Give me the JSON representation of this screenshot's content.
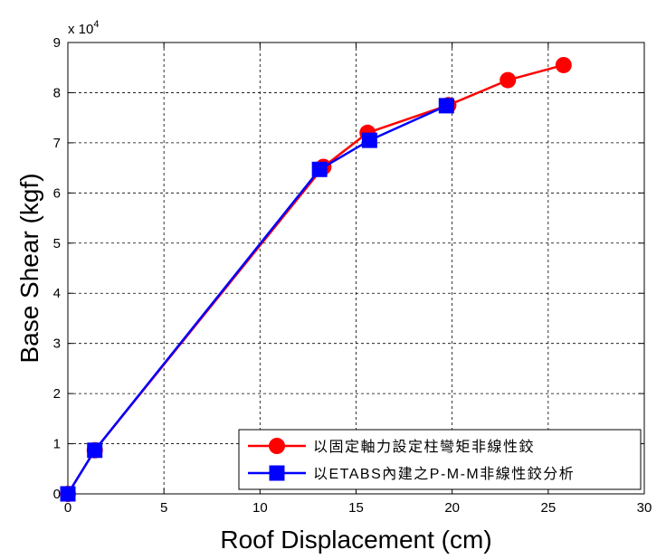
{
  "chart_data": {
    "type": "line",
    "xlabel": "Roof Displacement (cm)",
    "ylabel": "Base Shear (kgf)",
    "y_exponent_label": "x 10",
    "y_exponent_power": "4",
    "xlim": [
      0,
      30
    ],
    "ylim": [
      0,
      9
    ],
    "x_ticks": [
      "0",
      "5",
      "10",
      "15",
      "20",
      "25",
      "30"
    ],
    "y_ticks": [
      "0",
      "1",
      "2",
      "3",
      "4",
      "5",
      "6",
      "7",
      "8",
      "9"
    ],
    "grid": true,
    "legend_position": "bottom-right",
    "series": [
      {
        "name": "以固定軸力設定柱彎矩非線性鉸",
        "color": "#ff0000",
        "marker": "circle",
        "x": [
          0,
          1.4,
          13.3,
          15.6,
          19.8,
          22.9,
          25.8
        ],
        "y": [
          0,
          0.87,
          6.52,
          7.2,
          7.75,
          8.25,
          8.55
        ]
      },
      {
        "name": "以ETABS內建之P-M-M非線性鉸分析",
        "color": "#0000ff",
        "marker": "square",
        "x": [
          0,
          1.4,
          13.1,
          15.7,
          19.7
        ],
        "y": [
          0,
          0.87,
          6.47,
          7.05,
          7.74
        ]
      }
    ]
  }
}
